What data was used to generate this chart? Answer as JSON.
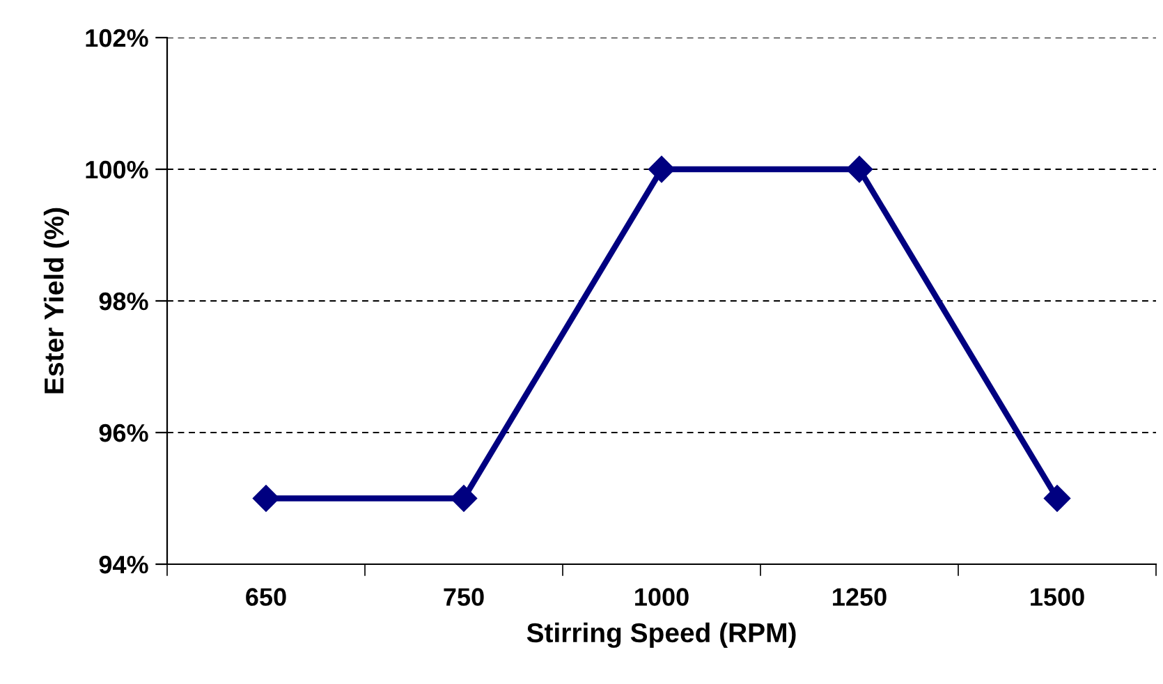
{
  "chart_data": {
    "type": "line",
    "xlabel": "Stirring Speed (RPM)",
    "ylabel": "Ester Yield (%)",
    "categories": [
      "650",
      "750",
      "1000",
      "1250",
      "1500"
    ],
    "series": [
      {
        "color": "#000080",
        "values": [
          95,
          95,
          100,
          100,
          95
        ]
      }
    ],
    "ylim": [
      94,
      102
    ],
    "yticks": [
      {
        "value": 94,
        "label": "94%"
      },
      {
        "value": 96,
        "label": "96%"
      },
      {
        "value": 98,
        "label": "98%"
      },
      {
        "value": 100,
        "label": "100%"
      },
      {
        "value": 102,
        "label": "102%"
      }
    ],
    "grid": "y",
    "marker": "diamond",
    "line_style": "solid",
    "legend": false
  }
}
